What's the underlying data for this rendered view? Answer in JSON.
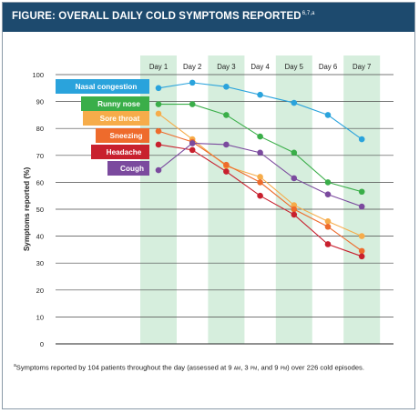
{
  "header": {
    "title": "FIGURE: OVERALL DAILY COLD SYMPTOMS REPORTED",
    "refs": "6,7,a"
  },
  "chart_data": {
    "type": "line",
    "title": "FIGURE: OVERALL DAILY COLD SYMPTOMS REPORTED",
    "xlabel": "",
    "ylabel": "Symptoms reported (%)",
    "categories": [
      "Day 1",
      "Day 2",
      "Day 3",
      "Day 4",
      "Day 5",
      "Day 6",
      "Day 7"
    ],
    "ylim": [
      0,
      100
    ],
    "yticks": [
      0,
      10,
      20,
      30,
      40,
      50,
      60,
      70,
      80,
      90,
      100
    ],
    "grid": true,
    "shaded_columns": [
      "Day 1",
      "Day 3",
      "Day 5",
      "Day 7"
    ],
    "legend_placement": "top-left",
    "series": [
      {
        "name": "Nasal congestion",
        "color": "#2aa3dc",
        "values": [
          95,
          97,
          95.5,
          92.5,
          89.5,
          85,
          76
        ]
      },
      {
        "name": "Runny nose",
        "color": "#3aae49",
        "values": [
          89,
          89,
          85,
          77,
          71,
          60,
          56.5
        ]
      },
      {
        "name": "Sore throat",
        "color": "#f6ac4a",
        "values": [
          85.5,
          76,
          66,
          62,
          51.5,
          45.5,
          40
        ]
      },
      {
        "name": "Sneezing",
        "color": "#ee6b2c",
        "values": [
          79,
          75,
          66.5,
          60,
          50,
          43.5,
          34.5
        ]
      },
      {
        "name": "Headache",
        "color": "#c8202e",
        "values": [
          74,
          72,
          64,
          55,
          48,
          37,
          32.5
        ]
      },
      {
        "name": "Cough",
        "color": "#7b4a9e",
        "values": [
          64.5,
          74.5,
          74,
          71,
          61.5,
          55.5,
          51
        ]
      }
    ]
  },
  "footnote": {
    "marker": "a",
    "text_1": "Symptoms reported by 104 patients throughout the day (assessed at 9 ",
    "am": "am",
    "text_2": ", 3 ",
    "pm1": "pm",
    "text_3": ", and 9 ",
    "pm2": "pm",
    "text_4": ") over 226 cold episodes."
  }
}
